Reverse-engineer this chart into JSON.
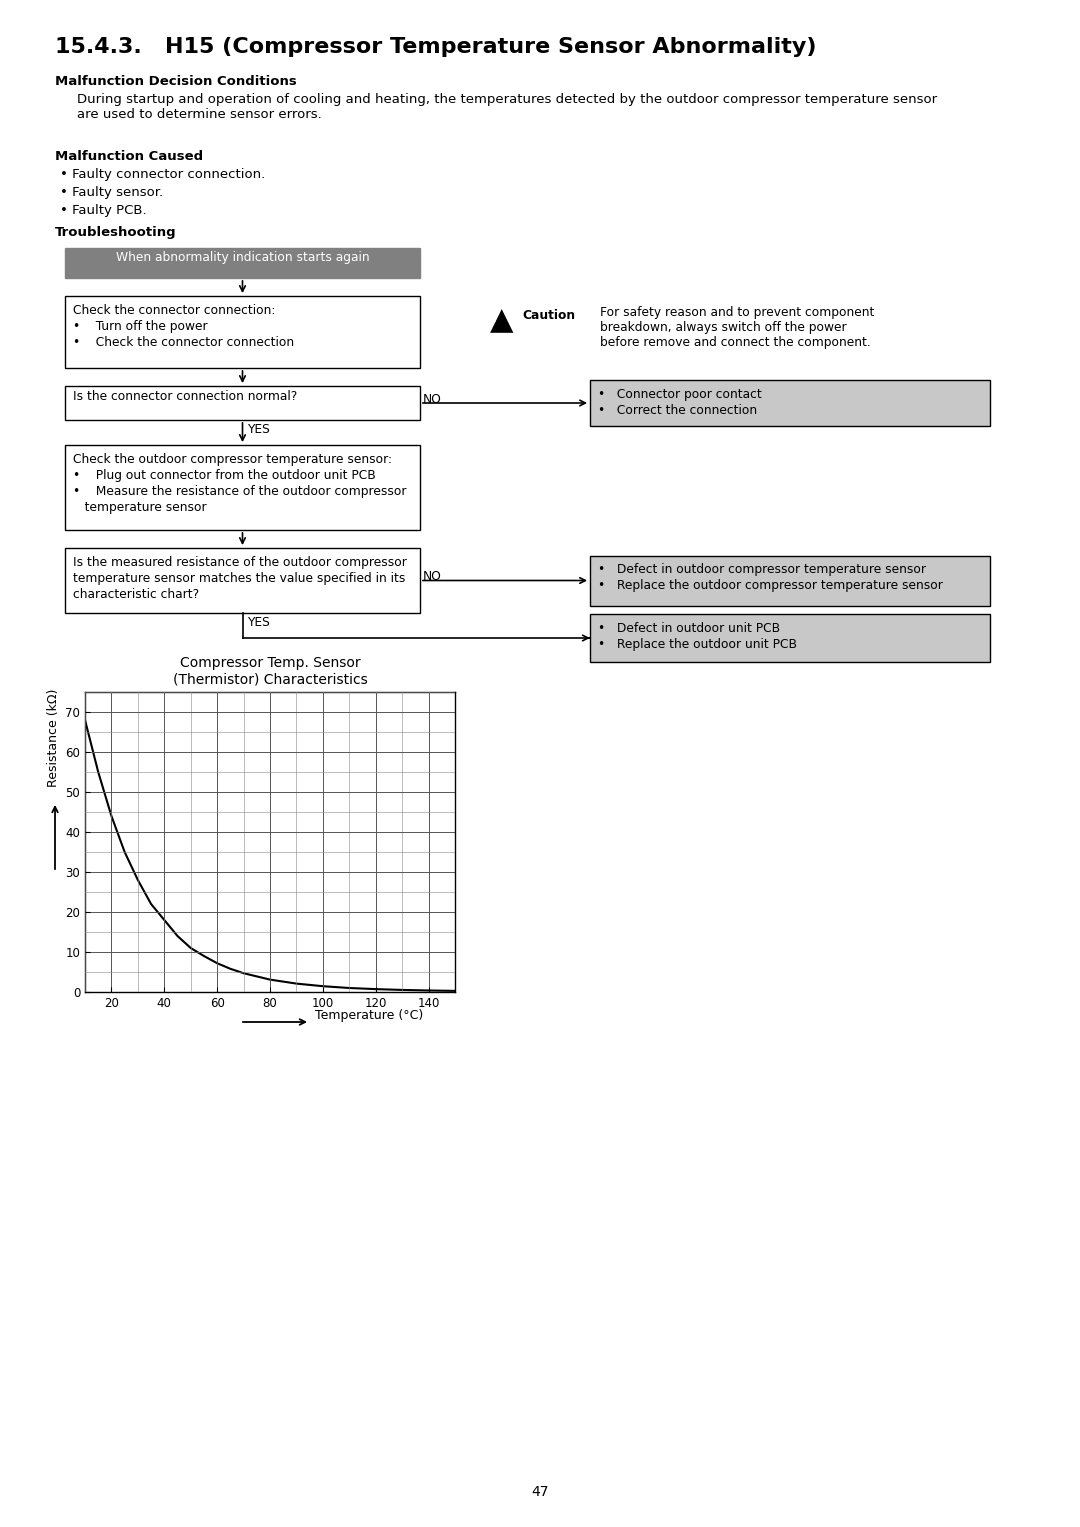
{
  "title": "15.4.3.   H15 (Compressor Temperature Sensor Abnormality)",
  "section1_bold": "Malfunction Decision Conditions",
  "section1_text": "During startup and operation of cooling and heating, the temperatures detected by the outdoor compressor temperature sensor\nare used to determine sensor errors.",
  "section2_bold": "Malfunction Caused",
  "section2_bullets": [
    "• Faulty connector connection.",
    "• Faulty sensor.",
    "• Faulty PCB."
  ],
  "section3_bold": "Troubleshooting",
  "flow_box0_text": "When abnormality indication starts again",
  "flow_box1_line1": "Check the connector connection:",
  "flow_box1_line2": "•    Turn off the power",
  "flow_box1_line3": "•    Check the connector connection",
  "flow_box2_text": "Is the connector connection normal?",
  "flow_box3_line1": "Check the outdoor compressor temperature sensor:",
  "flow_box3_line2": "•    Plug out connector from the outdoor unit PCB",
  "flow_box3_line3": "•    Measure the resistance of the outdoor compressor",
  "flow_box3_line4": "   temperature sensor",
  "flow_box4_line1": "Is the measured resistance of the outdoor compressor",
  "flow_box4_line2": "temperature sensor matches the value specified in its",
  "flow_box4_line3": "characteristic chart?",
  "flow_right1_line1": "•   Connector poor contact",
  "flow_right1_line2": "•   Correct the connection",
  "flow_right2_line1": "•   Defect in outdoor compressor temperature sensor",
  "flow_right2_line2": "•   Replace the outdoor compressor temperature sensor",
  "flow_right3_line1": "•   Defect in outdoor unit PCB",
  "flow_right3_line2": "•   Replace the outdoor unit PCB",
  "caution_text_line1": "For safety reason and to prevent component",
  "caution_text_line2": "breakdown, always switch off the power",
  "caution_text_line3": "before remove and connect the component.",
  "chart_title1": "Compressor Temp. Sensor",
  "chart_title2": "(Thermistor) Characteristics",
  "chart_xlabel": "Temperature (°C)",
  "chart_ylabel": "Resistance (kΩ)",
  "chart_xlim": [
    10,
    150
  ],
  "chart_ylim": [
    0,
    75
  ],
  "chart_xticks": [
    20,
    40,
    60,
    80,
    100,
    120,
    140
  ],
  "chart_yticks": [
    0,
    10,
    20,
    30,
    40,
    50,
    60,
    70
  ],
  "thermistor_temp": [
    10,
    15,
    20,
    25,
    30,
    35,
    40,
    45,
    50,
    55,
    60,
    65,
    70,
    80,
    90,
    100,
    110,
    120,
    130,
    140,
    150
  ],
  "thermistor_res": [
    68,
    55,
    44,
    35,
    28,
    22,
    18,
    14,
    11,
    9,
    7.2,
    5.8,
    4.7,
    3.1,
    2.1,
    1.45,
    1.0,
    0.72,
    0.52,
    0.38,
    0.28
  ],
  "page_number": "47",
  "bg_color": "#ffffff",
  "gray_box_color": "#808080",
  "light_gray_color": "#c8c8c8"
}
